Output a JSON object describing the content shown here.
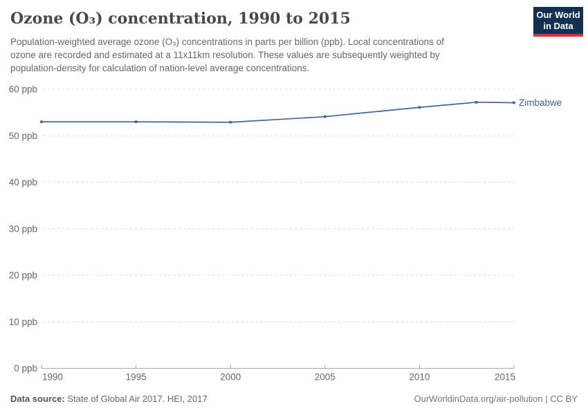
{
  "header": {
    "title": "Ozone (O₃) concentration, 1990 to 2015",
    "subtitle_lines": [
      "Population-weighted average ozone (O₃) concentrations in parts per billion (ppb). Local concentrations of",
      "ozone are recorded and estimated at a 11x11km resolution. These values are subsequently weighted by",
      "population-density for calculation of nation-level average concentrations."
    ]
  },
  "logo": {
    "line1": "Our World",
    "line2": "in Data",
    "bg_color": "#12304f",
    "stripe_color": "#d1353c"
  },
  "chart_data": {
    "type": "line",
    "title": "Ozone (O₃) concentration, 1990 to 2015",
    "x": [
      1990,
      1995,
      2000,
      2005,
      2010,
      2013,
      2015
    ],
    "series": [
      {
        "name": "Zimbabwe",
        "color": "#3d6399",
        "values": [
          53.0,
          53.0,
          52.9,
          54.1,
          56.1,
          57.2,
          57.1
        ]
      }
    ],
    "xlim": [
      1990,
      2015
    ],
    "ylim": [
      0,
      60
    ],
    "y_unit": "ppb",
    "y_ticks": [
      {
        "value": 0,
        "label": "0 ppb"
      },
      {
        "value": 10,
        "label": "10 ppb"
      },
      {
        "value": 20,
        "label": "20 ppb"
      },
      {
        "value": 30,
        "label": "30 ppb"
      },
      {
        "value": 40,
        "label": "40 ppb"
      },
      {
        "value": 50,
        "label": "50 ppb"
      },
      {
        "value": 60,
        "label": "60 ppb"
      }
    ],
    "x_ticks": [
      {
        "value": 1990,
        "label": "1990"
      },
      {
        "value": 1995,
        "label": "1995"
      },
      {
        "value": 2000,
        "label": "2000"
      },
      {
        "value": 2005,
        "label": "2005"
      },
      {
        "value": 2010,
        "label": "2010"
      },
      {
        "value": 2015,
        "label": "2015"
      }
    ],
    "grid": "horizontal-dashed",
    "legend_position": "end-of-line"
  },
  "footer": {
    "source_label": "Data source:",
    "source_text": "State of Global Air 2017. HEI, 2017",
    "link_text": "OurWorldinData.org/air-pollution | CC BY"
  },
  "colors": {
    "line_blue": "#3d6399",
    "gridline": "#dddddd",
    "axis": "#a3a3a3",
    "tick_label": "#666666"
  }
}
